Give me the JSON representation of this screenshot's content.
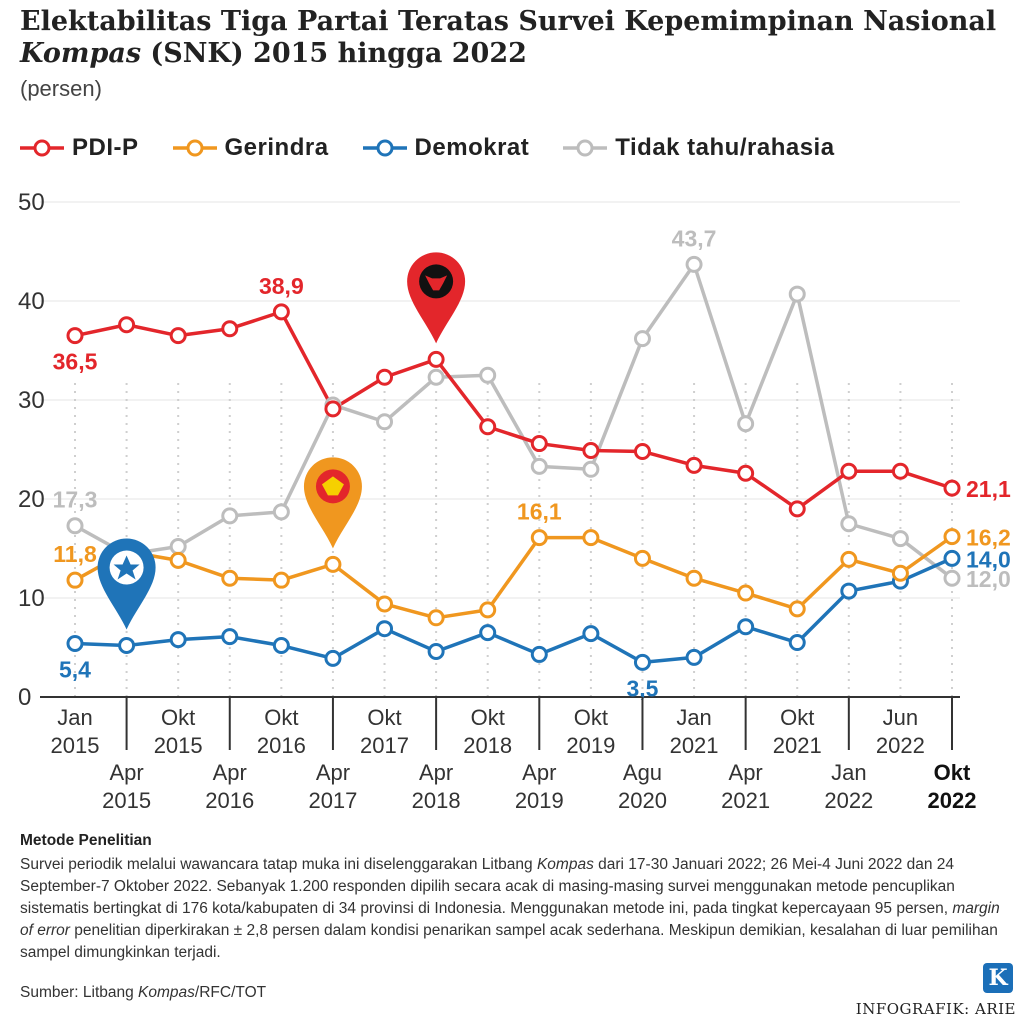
{
  "header": {
    "title_line1": "Elektabilitas Tiga Partai Teratas Survei Kepemimpinan Nasional",
    "title_kompas": "Kompas",
    "title_line2_rest": " (SNK) 2015 hingga 2022",
    "unit": "(persen)"
  },
  "chart_data": {
    "type": "line",
    "title": "Elektabilitas Tiga Partai Teratas Survei Kepemimpinan Nasional Kompas (SNK) 2015 hingga 2022",
    "ylabel": "persen",
    "ylim": [
      0,
      50
    ],
    "yticks": [
      0,
      10,
      20,
      30,
      40,
      50
    ],
    "x_count": 18,
    "x_labels": [
      {
        "index": 0,
        "line1": "Jan",
        "line2": "2015",
        "row": "top",
        "bold": false
      },
      {
        "index": 1,
        "line1": "Apr",
        "line2": "2015",
        "row": "bottom",
        "bold": false
      },
      {
        "index": 2,
        "line1": "Okt",
        "line2": "2015",
        "row": "top",
        "bold": false
      },
      {
        "index": 3,
        "line1": "Apr",
        "line2": "2016",
        "row": "bottom",
        "bold": false
      },
      {
        "index": 4,
        "line1": "Okt",
        "line2": "2016",
        "row": "top",
        "bold": false
      },
      {
        "index": 5,
        "line1": "Apr",
        "line2": "2017",
        "row": "bottom",
        "bold": false
      },
      {
        "index": 6,
        "line1": "Okt",
        "line2": "2017",
        "row": "top",
        "bold": false
      },
      {
        "index": 7,
        "line1": "Apr",
        "line2": "2018",
        "row": "bottom",
        "bold": false
      },
      {
        "index": 8,
        "line1": "Okt",
        "line2": "2018",
        "row": "top",
        "bold": false
      },
      {
        "index": 9,
        "line1": "Apr",
        "line2": "2019",
        "row": "bottom",
        "bold": false
      },
      {
        "index": 10,
        "line1": "Okt",
        "line2": "2019",
        "row": "top",
        "bold": false
      },
      {
        "index": 11,
        "line1": "Agu",
        "line2": "2020",
        "row": "bottom",
        "bold": false
      },
      {
        "index": 12,
        "line1": "Jan",
        "line2": "2021",
        "row": "top",
        "bold": false
      },
      {
        "index": 13,
        "line1": "Apr",
        "line2": "2021",
        "row": "bottom",
        "bold": false
      },
      {
        "index": 14,
        "line1": "Okt",
        "line2": "2021",
        "row": "top",
        "bold": false
      },
      {
        "index": 15,
        "line1": "Jan",
        "line2": "2022",
        "row": "bottom",
        "bold": false
      },
      {
        "index": 16,
        "line1": "Jun",
        "line2": "2022",
        "row": "top",
        "bold": false
      },
      {
        "index": 17,
        "line1": "Okt",
        "line2": "2022",
        "row": "bottom",
        "bold": true
      }
    ],
    "series": [
      {
        "name": "PDI-P",
        "color": "#e3262b",
        "values": [
          36.5,
          37.6,
          36.5,
          37.2,
          38.9,
          29.1,
          32.3,
          34.1,
          27.3,
          25.6,
          24.9,
          24.8,
          23.4,
          22.6,
          19.0,
          22.8,
          22.8,
          21.1
        ]
      },
      {
        "name": "Gerindra",
        "color": "#f0971f",
        "values": [
          11.8,
          14.7,
          13.8,
          12.0,
          11.8,
          13.4,
          9.4,
          8.0,
          8.8,
          16.1,
          16.1,
          14.0,
          12.0,
          10.5,
          8.9,
          13.9,
          12.5,
          16.2
        ]
      },
      {
        "name": "Demokrat",
        "color": "#1f74b8",
        "values": [
          5.4,
          5.2,
          5.8,
          6.1,
          5.2,
          3.9,
          6.9,
          4.6,
          6.5,
          4.3,
          6.4,
          3.5,
          4.0,
          7.1,
          5.5,
          10.7,
          11.7,
          14.0
        ]
      },
      {
        "name": "Tidak tahu/rahasia",
        "color": "#bdbdbd",
        "values": [
          17.3,
          14.4,
          15.2,
          18.3,
          18.7,
          29.5,
          27.8,
          32.3,
          32.5,
          23.3,
          23.0,
          36.2,
          43.7,
          27.6,
          40.7,
          17.5,
          16.0,
          12.0
        ]
      }
    ],
    "annotations": [
      {
        "series": "PDI-P",
        "index": 0,
        "text": "36,5",
        "pos": "below"
      },
      {
        "series": "PDI-P",
        "index": 4,
        "text": "38,9",
        "pos": "above"
      },
      {
        "series": "PDI-P",
        "index": 17,
        "text": "21,1",
        "pos": "right"
      },
      {
        "series": "Gerindra",
        "index": 0,
        "text": "11,8",
        "pos": "above"
      },
      {
        "series": "Gerindra",
        "index": 9,
        "text": "16,1",
        "pos": "above"
      },
      {
        "series": "Gerindra",
        "index": 17,
        "text": "16,2",
        "pos": "right"
      },
      {
        "series": "Demokrat",
        "index": 0,
        "text": "5,4",
        "pos": "below"
      },
      {
        "series": "Demokrat",
        "index": 11,
        "text": "3,5",
        "pos": "below"
      },
      {
        "series": "Demokrat",
        "index": 17,
        "text": "14,0",
        "pos": "right"
      },
      {
        "series": "Tidak tahu/rahasia",
        "index": 0,
        "text": "17,3",
        "pos": "above"
      },
      {
        "series": "Tidak tahu/rahasia",
        "index": 12,
        "text": "43,7",
        "pos": "above"
      },
      {
        "series": "Tidak tahu/rahasia",
        "index": 17,
        "text": "12,0",
        "pos": "right"
      }
    ],
    "markers": [
      {
        "series": "PDI-P",
        "index": 7,
        "icon": "bull-head-icon",
        "color": "#e3262b"
      },
      {
        "series": "Gerindra",
        "index": 5,
        "icon": "garuda-icon",
        "color": "#f0971f"
      },
      {
        "series": "Demokrat",
        "index": 1,
        "icon": "mercy-star-icon",
        "color": "#1f74b8"
      }
    ]
  },
  "footer": {
    "method_title": "Metode Penelitian",
    "method_p1": "Survei periodik melalui wawancara tatap muka ini diselenggarakan Litbang ",
    "method_kompas": "Kompas",
    "method_p2": " dari 17-30 Januari 2022; 26 Mei-4 Juni 2022 dan 24 September-7 Oktober 2022. Sebanyak 1.200 responden dipilih secara acak di masing-masing survei menggunakan metode pencuplikan sistematis bertingkat di 176 kota/kabupaten di 34 provinsi di Indonesia. Menggunakan metode ini, pada tingkat kepercayaan 95 persen, ",
    "method_moe": "margin of error",
    "method_p3": " penelitian diperkirakan ± 2,8 persen dalam kondisi penarikan sampel acak sederhana. Meskipun demikian, kesalahan di luar pemilihan sampel dimungkinkan terjadi.",
    "source_prefix": "Sumber: Litbang ",
    "source_kompas": "Kompas",
    "source_suffix": "/RFC/TOT",
    "logo_letter": "K",
    "credit": "INFOGRAFIK: ARIE"
  }
}
